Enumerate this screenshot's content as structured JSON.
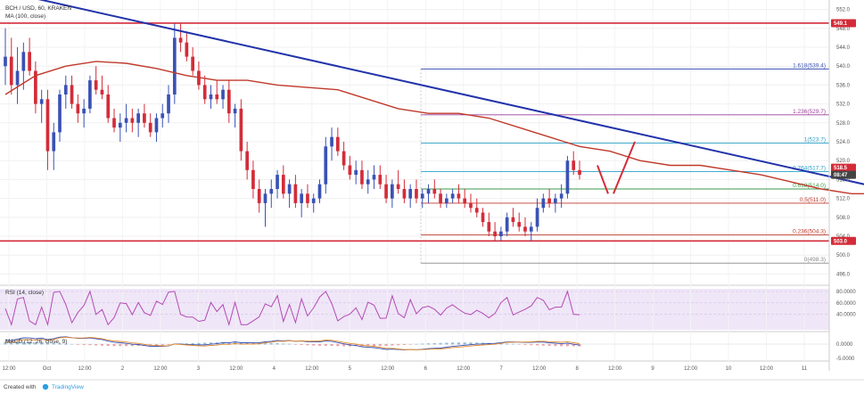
{
  "header": {
    "symbol_line": "BCH / USD, 60, KRAKEN",
    "ma_label": "MA (100, close)"
  },
  "indicators": {
    "rsi_label": "RSI (14, close)",
    "rsi_ticks": [
      "80.0000",
      "60.0000",
      "40.0000"
    ],
    "macd_label": "MACD (12, 26, close, 9)",
    "macd_ticks": [
      "0.0000",
      "-5.0000"
    ]
  },
  "footer": {
    "created_with": "Created with",
    "brand": "TradingView"
  },
  "colors": {
    "up": "#3a52b5",
    "down": "#d32c39",
    "ma": "#c0392b",
    "trendline": "#2233aa",
    "support": "#d32c39",
    "rsi_band": "#efe6f7",
    "rsi_line": "#b44ab4",
    "fib_blue": "#3a52b5",
    "fib_purple": "#9b3f9b",
    "fib_cyan": "#28a0c8",
    "fib_green": "#3a9b4a",
    "fib_red": "#c0392b",
    "fib_gray": "#888888",
    "tv_blue": "#2d9ee0"
  },
  "chart_data": {
    "type": "candlestick",
    "title": "BCH / USD, 60, KRAKEN",
    "xlabel": "",
    "ylabel": "",
    "ylim": [
      494,
      554
    ],
    "grid": true,
    "y_ticks": [
      552,
      548,
      544,
      540,
      536,
      532,
      528,
      524,
      520,
      516,
      512,
      508,
      504,
      500,
      496
    ],
    "x_ticks": [
      "12:00",
      "Oct",
      "12:00",
      "2",
      "12:00",
      "3",
      "12:00",
      "4",
      "12:00",
      "5",
      "12:00",
      "6",
      "12:00",
      "7",
      "12:00",
      "8",
      "12:00",
      "9",
      "12:00",
      "10",
      "12:00",
      "11"
    ],
    "price_tags": [
      {
        "value": 549.1,
        "label": "549.1"
      },
      {
        "value": 518.5,
        "label": "518.5"
      },
      {
        "value": 517.0,
        "label": "08:47"
      },
      {
        "value": 503.0,
        "label": "503.0"
      }
    ],
    "resistance_level": 549.1,
    "support_level": 503.0,
    "fibonacci": [
      {
        "ratio": "1.618",
        "value": 539.4,
        "label": "1.618(539.4)"
      },
      {
        "ratio": "1.236",
        "value": 529.7,
        "label": "1.236(529.7)"
      },
      {
        "ratio": "1",
        "value": 523.7,
        "label": "1(523.7)"
      },
      {
        "ratio": "0.764",
        "value": 517.7,
        "label": "0.764(517.7)"
      },
      {
        "ratio": "0.618",
        "value": 514.0,
        "label": "0.618(514.0)"
      },
      {
        "ratio": "0.5",
        "value": 511.0,
        "label": "0.5(511.0)"
      },
      {
        "ratio": "0.236",
        "value": 504.3,
        "label": "0.236(504.3)"
      },
      {
        "ratio": "0",
        "value": 498.3,
        "label": "0(498.3)"
      }
    ],
    "trendline": {
      "from": [
        0,
        556
      ],
      "to": [
        156,
        511
      ]
    },
    "ma_100": [
      [
        0,
        534
      ],
      [
        5,
        538
      ],
      [
        10,
        540
      ],
      [
        15,
        541
      ],
      [
        20,
        540.6
      ],
      [
        25,
        539.5
      ],
      [
        30,
        538
      ],
      [
        35,
        537
      ],
      [
        40,
        537
      ],
      [
        45,
        536
      ],
      [
        50,
        535.5
      ],
      [
        55,
        535
      ],
      [
        60,
        533
      ],
      [
        65,
        531
      ],
      [
        70,
        530
      ],
      [
        75,
        530
      ],
      [
        80,
        529
      ],
      [
        85,
        527
      ],
      [
        90,
        525
      ],
      [
        95,
        523
      ],
      [
        100,
        522
      ],
      [
        105,
        520
      ],
      [
        110,
        519
      ],
      [
        115,
        519
      ],
      [
        120,
        518
      ],
      [
        125,
        517
      ],
      [
        130,
        515.5
      ],
      [
        135,
        514
      ],
      [
        140,
        513
      ],
      [
        145,
        513
      ],
      [
        150,
        512.5
      ],
      [
        155,
        513.5
      ]
    ],
    "candles": [
      [
        0,
        540,
        548,
        536,
        542
      ],
      [
        1,
        542,
        546,
        534,
        536
      ],
      [
        2,
        536,
        544,
        532,
        539
      ],
      [
        3,
        539,
        545,
        535,
        543
      ],
      [
        4,
        543,
        546,
        538,
        539
      ],
      [
        5,
        539,
        541,
        530,
        532
      ],
      [
        6,
        532,
        535,
        528,
        533
      ],
      [
        7,
        533,
        535,
        518,
        522
      ],
      [
        8,
        522,
        528,
        518,
        526
      ],
      [
        9,
        526,
        535,
        524,
        534
      ],
      [
        10,
        534,
        538,
        531,
        536
      ],
      [
        11,
        536,
        538,
        531,
        532
      ],
      [
        12,
        532,
        534,
        528,
        530
      ],
      [
        13,
        530,
        533,
        527,
        531
      ],
      [
        14,
        531,
        538,
        530,
        537
      ],
      [
        15,
        537,
        540,
        534,
        535
      ],
      [
        16,
        535,
        538,
        533,
        534
      ],
      [
        17,
        534,
        536,
        528,
        529
      ],
      [
        18,
        529,
        531,
        526,
        527
      ],
      [
        19,
        527,
        530,
        524,
        528
      ],
      [
        20,
        528,
        532,
        526,
        529
      ],
      [
        21,
        529,
        531,
        526,
        528
      ],
      [
        22,
        528,
        531,
        525,
        530
      ],
      [
        23,
        530,
        532,
        527,
        528
      ],
      [
        24,
        528,
        530,
        525,
        526
      ],
      [
        25,
        526,
        530,
        524,
        529
      ],
      [
        26,
        529,
        532,
        527,
        530
      ],
      [
        27,
        530,
        536,
        528,
        534
      ],
      [
        28,
        534,
        549,
        532,
        546
      ],
      [
        29,
        546,
        549,
        543,
        545
      ],
      [
        30,
        545,
        547,
        541,
        542
      ],
      [
        31,
        542,
        544,
        538,
        539
      ],
      [
        32,
        539,
        541,
        535,
        536
      ],
      [
        33,
        536,
        538,
        532,
        533
      ],
      [
        34,
        533,
        536,
        531,
        534
      ],
      [
        35,
        534,
        537,
        532,
        533
      ],
      [
        36,
        533,
        536,
        531,
        535
      ],
      [
        37,
        535,
        537,
        528,
        530
      ],
      [
        38,
        530,
        532,
        527,
        531
      ],
      [
        39,
        531,
        533,
        520,
        522
      ],
      [
        40,
        522,
        524,
        516,
        518
      ],
      [
        41,
        518,
        520,
        512,
        514
      ],
      [
        42,
        514,
        516,
        509,
        511
      ],
      [
        43,
        511,
        514,
        506,
        513
      ],
      [
        44,
        513,
        516,
        510,
        514
      ],
      [
        45,
        514,
        518,
        512,
        517
      ],
      [
        46,
        517,
        519,
        512,
        513
      ],
      [
        47,
        513,
        516,
        510,
        515
      ],
      [
        48,
        515,
        517,
        510,
        511
      ],
      [
        49,
        511,
        514,
        508,
        513
      ],
      [
        50,
        513,
        515,
        510,
        511
      ],
      [
        51,
        511,
        513,
        509,
        512
      ],
      [
        52,
        512,
        516,
        511,
        515
      ],
      [
        53,
        515,
        525,
        513,
        523
      ],
      [
        54,
        523,
        527,
        520,
        525
      ],
      [
        55,
        525,
        527,
        521,
        522
      ],
      [
        56,
        522,
        524,
        518,
        519
      ],
      [
        57,
        519,
        521,
        516,
        517
      ],
      [
        58,
        517,
        520,
        515,
        518
      ],
      [
        59,
        518,
        520,
        514,
        515
      ],
      [
        60,
        515,
        518,
        513,
        516
      ],
      [
        61,
        516,
        519,
        514,
        517
      ],
      [
        62,
        517,
        519,
        514,
        515
      ],
      [
        63,
        515,
        517,
        511,
        512
      ],
      [
        64,
        512,
        516,
        510,
        515
      ],
      [
        65,
        515,
        518,
        513,
        514
      ],
      [
        66,
        514,
        516,
        511,
        512
      ],
      [
        67,
        512,
        515,
        510,
        514
      ],
      [
        68,
        514,
        516,
        511,
        512
      ],
      [
        69,
        512,
        514,
        510,
        513
      ],
      [
        70,
        513,
        515,
        511,
        514
      ],
      [
        71,
        514,
        516,
        512,
        513
      ],
      [
        72,
        513,
        514,
        510,
        511
      ],
      [
        73,
        511,
        513,
        510,
        512
      ],
      [
        74,
        512,
        514,
        511,
        513
      ],
      [
        75,
        513,
        515,
        511,
        512
      ],
      [
        76,
        512,
        514,
        510,
        511
      ],
      [
        77,
        511,
        513,
        509,
        510
      ],
      [
        78,
        510,
        512,
        508,
        509
      ],
      [
        79,
        509,
        510,
        506,
        507
      ],
      [
        80,
        507,
        509,
        504,
        505
      ],
      [
        81,
        505,
        507,
        503,
        504
      ],
      [
        82,
        504,
        506,
        503,
        505
      ],
      [
        83,
        505,
        509,
        504,
        508
      ],
      [
        84,
        508,
        510,
        506,
        507
      ],
      [
        85,
        507,
        509,
        505,
        506
      ],
      [
        86,
        506,
        508,
        504,
        505
      ],
      [
        87,
        505,
        507,
        503,
        506
      ],
      [
        88,
        506,
        512,
        505,
        510
      ],
      [
        89,
        510,
        513,
        509,
        512
      ],
      [
        90,
        512,
        514,
        510,
        511
      ],
      [
        91,
        511,
        513,
        509,
        512
      ],
      [
        92,
        512,
        515,
        510,
        513
      ],
      [
        93,
        513,
        521,
        512,
        520
      ],
      [
        94,
        520,
        522,
        517,
        518
      ],
      [
        95,
        518,
        520,
        516,
        517
      ]
    ]
  }
}
